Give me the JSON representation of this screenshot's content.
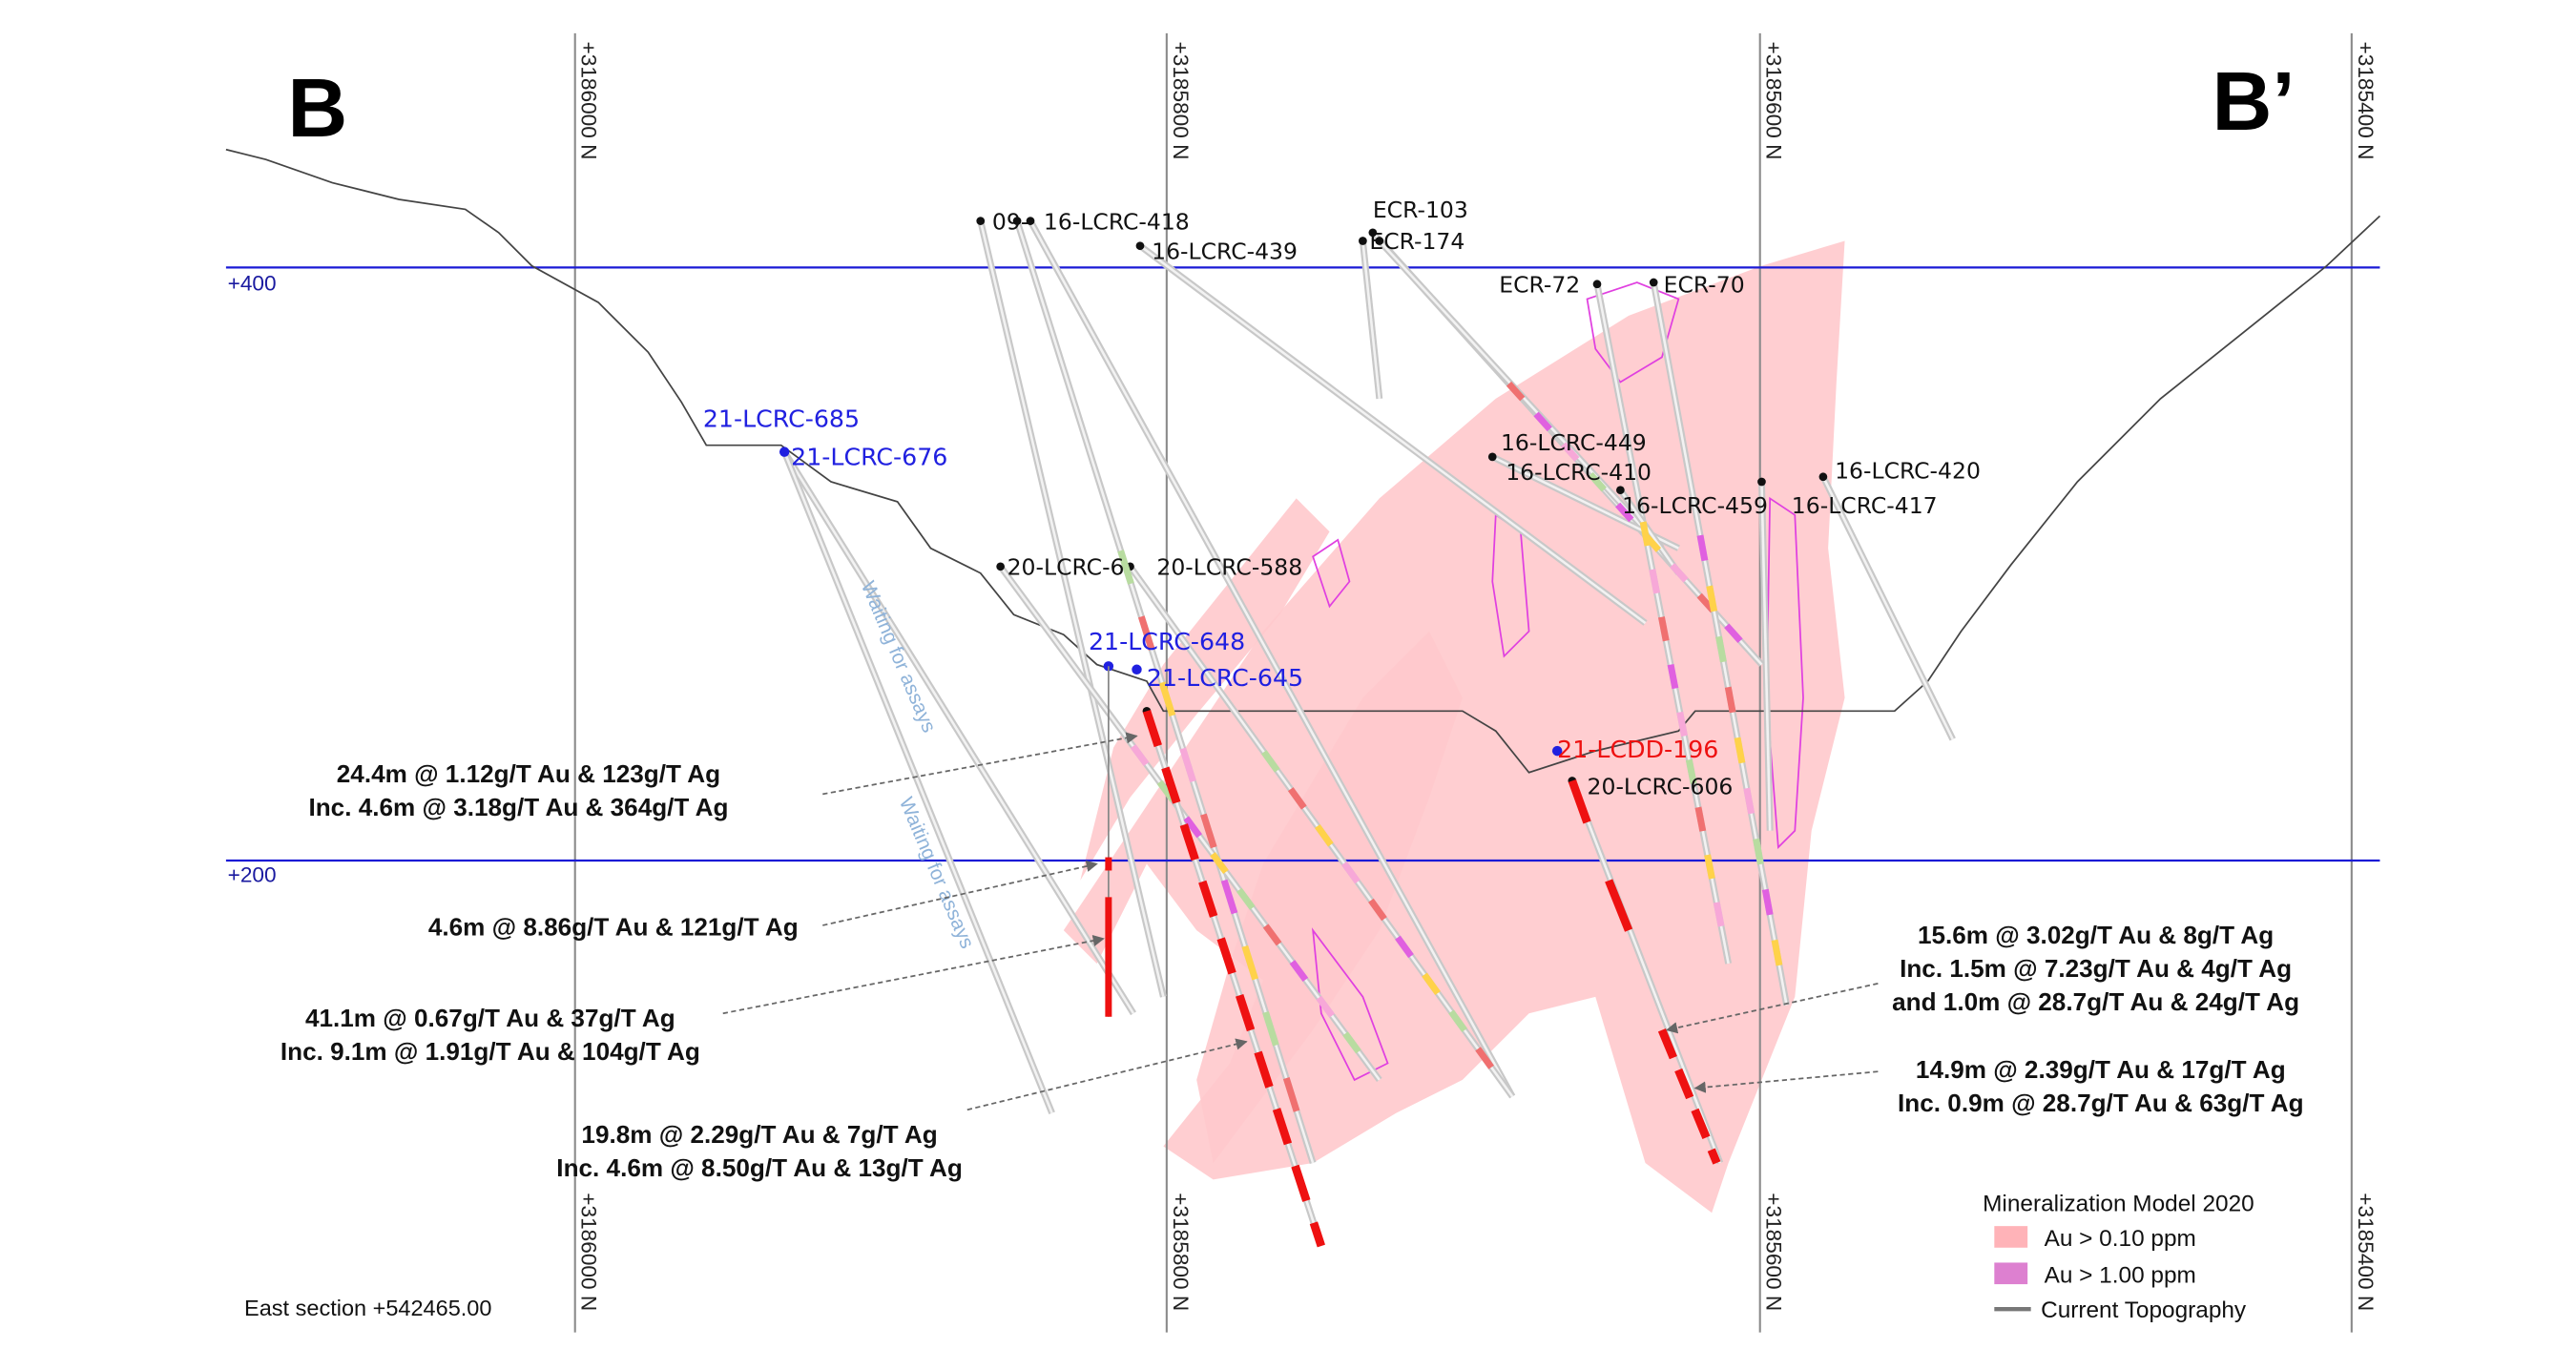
{
  "section": {
    "start_label": "B",
    "end_label": "B’",
    "east_section": "East section +542465.00"
  },
  "northing_lines": [
    "+3186000 N",
    "+3185800 N",
    "+3185600 N",
    "+3185400 N"
  ],
  "elevations": [
    "+400",
    "+200"
  ],
  "holes": {
    "black": [
      "09-",
      "16-LCRC-418",
      "16-LCRC-439",
      "ECR-103",
      "ECR-174",
      "ECR-72",
      "ECR-70",
      "16-LCRC-449",
      "16-LCRC-410",
      "16-LCRC-459",
      "16-LCRC-417",
      "16-LCRC-420",
      "20-LCRC-6",
      "20-LCRC-588",
      "20-LCRC-606"
    ],
    "blue": [
      "21-LCRC-685",
      "21-LCRC-676",
      "21-LCRC-648",
      "21-LCRC-645"
    ],
    "red": [
      "21-LCDD-196"
    ]
  },
  "waiting_note": "Waiting for assays",
  "callouts": [
    {
      "lines": [
        "24.4m @ 1.12g/T Au & 123g/T Ag",
        "Inc. 4.6m @ 3.18g/T Au & 364g/T Ag"
      ]
    },
    {
      "lines": [
        "4.6m @ 8.86g/T Au & 121g/T Ag"
      ]
    },
    {
      "lines": [
        "41.1m @ 0.67g/T Au & 37g/T Ag",
        "Inc. 9.1m @ 1.91g/T Au & 104g/T Ag"
      ]
    },
    {
      "lines": [
        "19.8m @ 2.29g/T Au & 7g/T Ag",
        "Inc. 4.6m @ 8.50g/T Au & 13g/T Ag"
      ]
    },
    {
      "lines": [
        "15.6m @ 3.02g/T Au & 8g/T Ag",
        "Inc. 1.5m @ 7.23g/T Au & 4g/T Ag",
        "and 1.0m @ 28.7g/T Au & 24g/T Ag"
      ]
    },
    {
      "lines": [
        "14.9m @ 2.39g/T Au & 17g/T Ag",
        "Inc. 0.9m @ 28.7g/T Au & 63g/T Ag"
      ]
    }
  ],
  "legend": {
    "title": "Mineralization Model 2020",
    "items": [
      {
        "label": "Au > 0.10 ppm",
        "color": "#ffb3b8"
      },
      {
        "label": "Au > 1.00 ppm",
        "color": "#dd80d0"
      },
      {
        "label": "Current Topography",
        "color": "#777777"
      }
    ]
  },
  "colors": {
    "grid": "#8a8a8a",
    "elevation_line": "#1a1ad6",
    "intercept": "#ee1111",
    "pending_hole": "#2020e0"
  }
}
